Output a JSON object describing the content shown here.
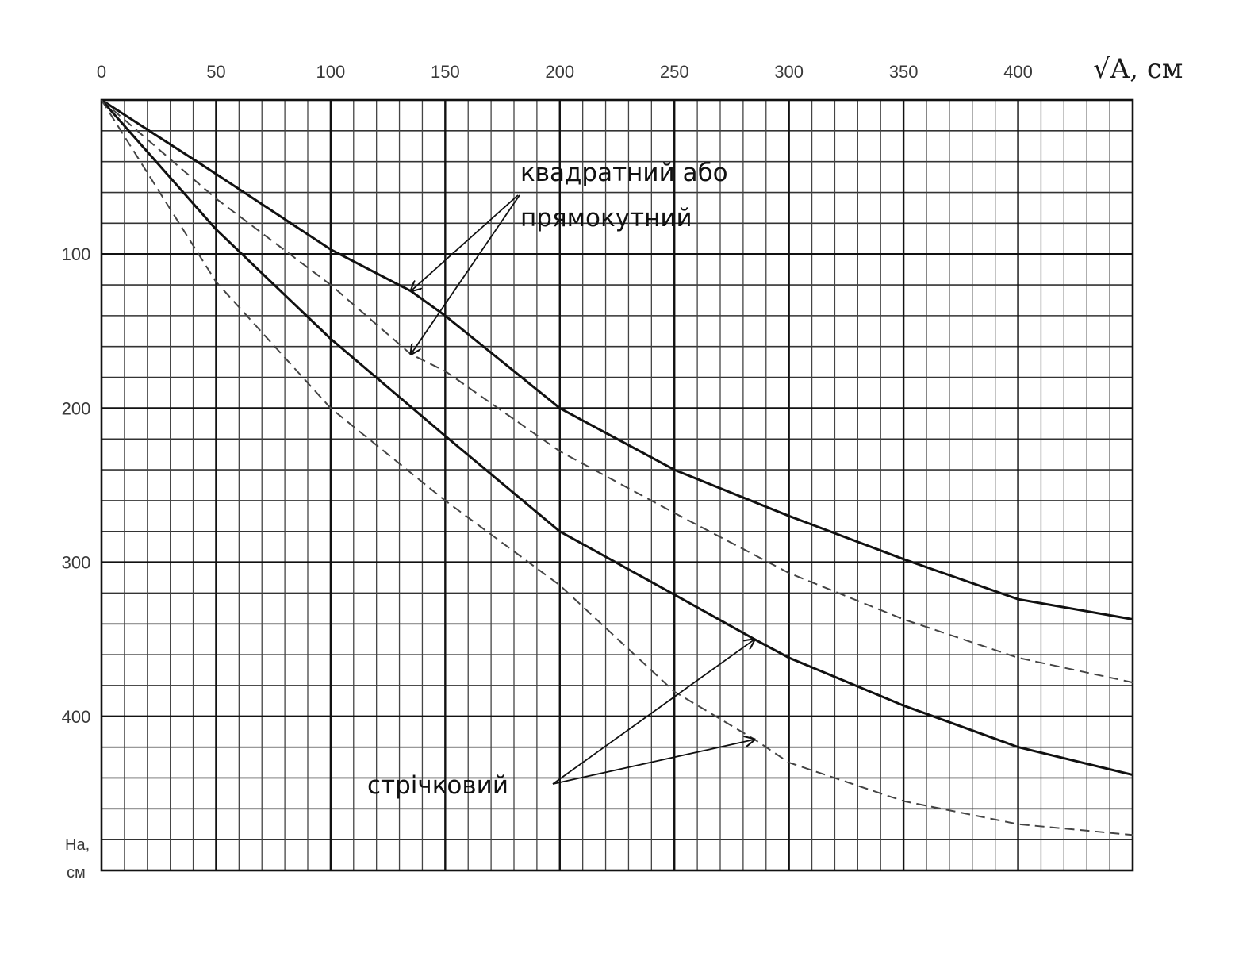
{
  "chart_data": {
    "type": "line",
    "x_axis": {
      "label": "√A, см",
      "ticks": [
        0,
        50,
        100,
        150,
        200,
        250,
        300,
        350,
        400
      ],
      "range": [
        0,
        450
      ],
      "position": "top"
    },
    "y_axis": {
      "label_line1": "Ha,",
      "label_line2": "см",
      "ticks": [
        100,
        200,
        300,
        400
      ],
      "range": [
        0,
        500
      ],
      "direction": "down"
    },
    "grid": true,
    "series": [
      {
        "style": "solid",
        "x": [
          0,
          50,
          100,
          135,
          150,
          200,
          250,
          300,
          350,
          400,
          450
        ],
        "y": [
          0,
          48,
          97,
          124,
          140,
          200,
          240,
          270,
          298,
          324,
          337
        ]
      },
      {
        "style": "dashed",
        "x": [
          0,
          50,
          100,
          135,
          150,
          200,
          250,
          300,
          350,
          400,
          450
        ],
        "y": [
          0,
          64,
          120,
          165,
          176,
          228,
          268,
          307,
          337,
          362,
          378
        ]
      },
      {
        "style": "solid",
        "x": [
          0,
          50,
          100,
          150,
          200,
          250,
          285,
          300,
          350,
          400,
          450
        ],
        "y": [
          0,
          84,
          155,
          218,
          280,
          321,
          350,
          362,
          393,
          420,
          438
        ]
      },
      {
        "style": "dashed",
        "x": [
          0,
          50,
          100,
          150,
          200,
          250,
          285,
          300,
          350,
          400,
          450
        ],
        "y": [
          0,
          118,
          200,
          260,
          315,
          384,
          415,
          430,
          455,
          470,
          477
        ]
      }
    ],
    "annotations": [
      {
        "text_line1": "квадратний або",
        "text_line2": "прямокутний",
        "targets": [
          0,
          1
        ]
      },
      {
        "text": "стрічковий",
        "targets": [
          2,
          3
        ]
      }
    ]
  }
}
